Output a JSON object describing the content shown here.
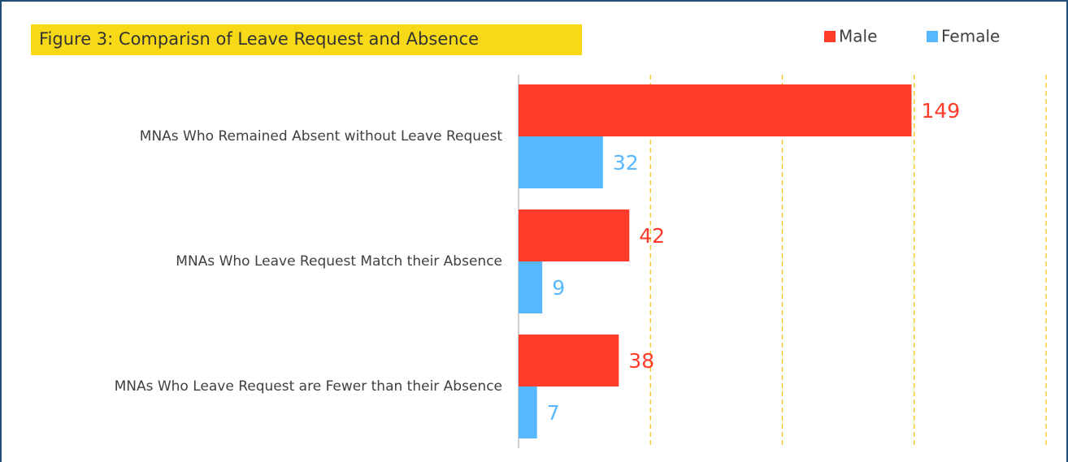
{
  "chart_data": {
    "type": "bar",
    "orientation": "horizontal",
    "title": "Figure 3: Comparisn of Leave Request and Absence",
    "categories": [
      "MNAs Who Remained Absent without Leave Request",
      "MNAs Who Leave Request Match their Absence",
      "MNAs Who Leave Request are Fewer than their Absence"
    ],
    "series": [
      {
        "name": "Male",
        "color": "#ff3b2a",
        "values": [
          149,
          42,
          38
        ]
      },
      {
        "name": "Female",
        "color": "#57b8ff",
        "values": [
          32,
          9,
          7
        ]
      }
    ],
    "xlim": [
      0,
      200
    ],
    "xticks": [
      0,
      50,
      100,
      150,
      200
    ],
    "grid": true,
    "grid_color": "#f5c518",
    "legend": "top-right"
  }
}
